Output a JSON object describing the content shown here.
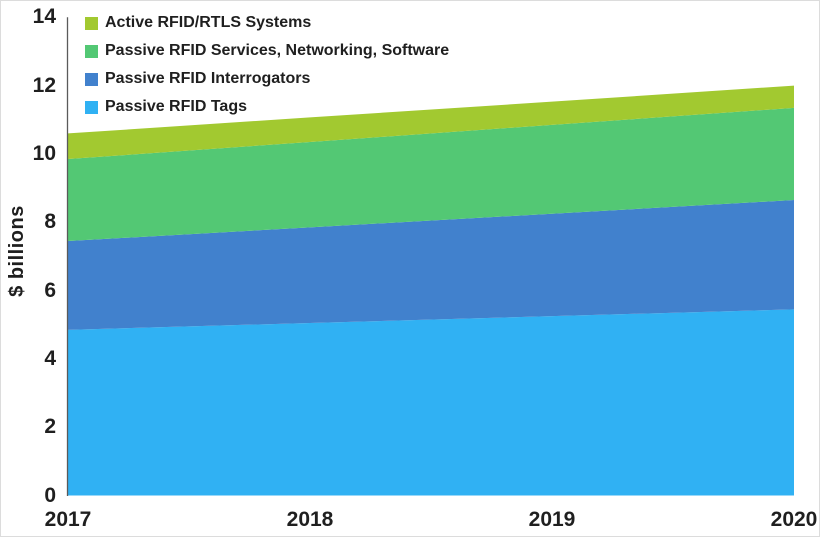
{
  "page": {
    "background": "#ffffff",
    "border_color": "#dcdcdc"
  },
  "chart_data": {
    "type": "area",
    "stacked": true,
    "title": "",
    "xlabel": "",
    "ylabel": "$ billions",
    "x": [
      2017,
      2018,
      2019,
      2020
    ],
    "x_tick_labels": [
      "2017",
      "2018",
      "2019",
      "2020"
    ],
    "ylim": [
      0,
      14
    ],
    "y_ticks": [
      0,
      2,
      4,
      6,
      8,
      10,
      12,
      14
    ],
    "grid": false,
    "legend_position": "top-left",
    "axis_color": "#5a5a5a",
    "text_color": "#1f1f1f",
    "series": [
      {
        "name": "Passive RFID Tags",
        "color": "#30b1f3",
        "values": [
          4.85,
          5.05,
          5.25,
          5.45
        ]
      },
      {
        "name": "Passive RFID Interrogators",
        "color": "#4181cd",
        "values": [
          2.6,
          2.8,
          3.0,
          3.2
        ]
      },
      {
        "name": "Passive RFID Services, Networking, Software",
        "color": "#53c874",
        "values": [
          2.4,
          2.5,
          2.6,
          2.7
        ]
      },
      {
        "name": "Active RFID/RTLS Systems",
        "color": "#a2c930",
        "values": [
          0.75,
          0.72,
          0.68,
          0.65
        ]
      }
    ]
  }
}
